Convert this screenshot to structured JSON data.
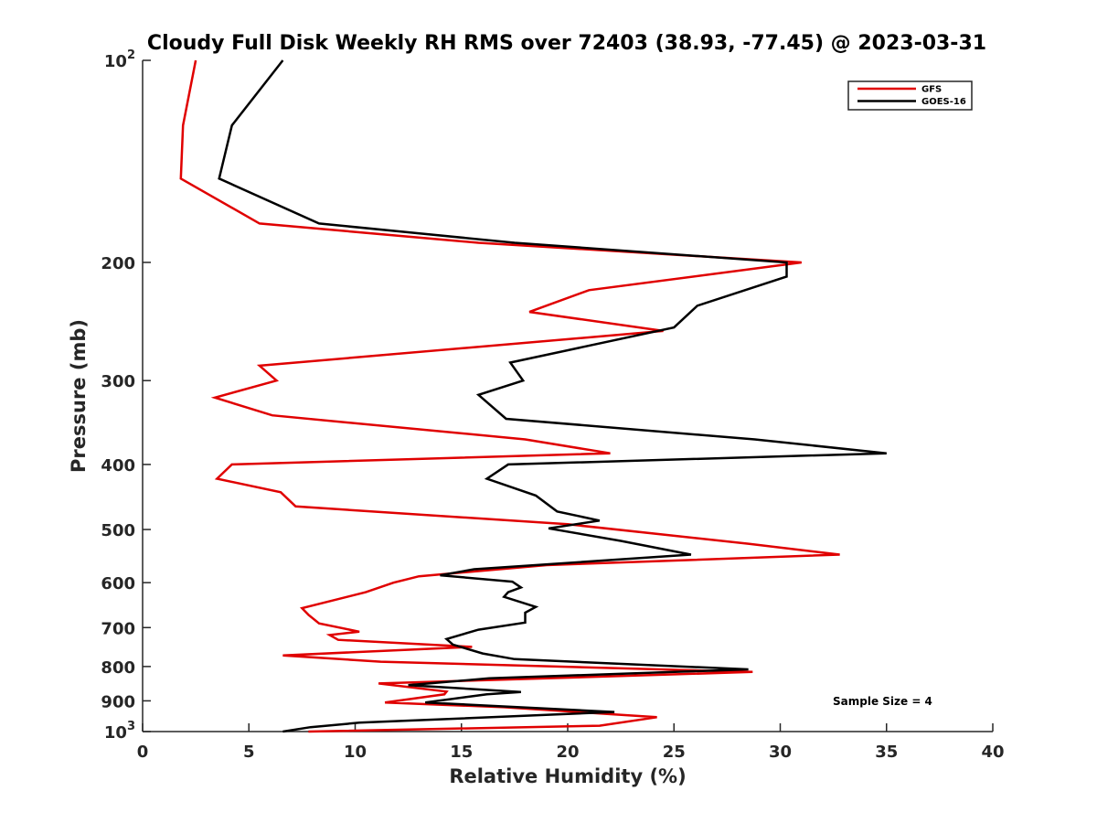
{
  "chart_data": {
    "type": "line",
    "title": "Cloudy Full Disk Weekly RH RMS over 72403 (38.93, -77.45) @ 2023-03-31",
    "xlabel": "Relative Humidity (%)",
    "ylabel": "Pressure (mb)",
    "xlim": [
      0,
      40
    ],
    "ylim": [
      100,
      1000
    ],
    "yscale": "log",
    "y_reversed": true,
    "grid": false,
    "legend_position": "top-right",
    "x_ticks": [
      "0",
      "5",
      "10",
      "15",
      "20",
      "25",
      "30",
      "35",
      "40"
    ],
    "x_tick_values": [
      0,
      5,
      10,
      15,
      20,
      25,
      30,
      35,
      40
    ],
    "y_tick_values": [
      100,
      200,
      300,
      400,
      500,
      600,
      700,
      800,
      900,
      1000
    ],
    "y_tick_labels": [
      {
        "base": "10",
        "exp": "2"
      },
      {
        "base": "200",
        "exp": ""
      },
      {
        "base": "300",
        "exp": ""
      },
      {
        "base": "400",
        "exp": ""
      },
      {
        "base": "500",
        "exp": ""
      },
      {
        "base": "600",
        "exp": ""
      },
      {
        "base": "700",
        "exp": ""
      },
      {
        "base": "800",
        "exp": ""
      },
      {
        "base": "900",
        "exp": ""
      },
      {
        "base": "10",
        "exp": "3"
      }
    ],
    "annotation": "Sample Size = 4",
    "series": [
      {
        "name": "GFS",
        "color": "#e00000",
        "points": [
          [
            2.5,
            100
          ],
          [
            1.9,
            125
          ],
          [
            1.8,
            150
          ],
          [
            5.5,
            175
          ],
          [
            15.8,
            187
          ],
          [
            31.0,
            200
          ],
          [
            21.0,
            220
          ],
          [
            18.2,
            237
          ],
          [
            24.5,
            253
          ],
          [
            5.5,
            285
          ],
          [
            6.3,
            300
          ],
          [
            3.4,
            318
          ],
          [
            6.1,
            338
          ],
          [
            18.0,
            367
          ],
          [
            22.0,
            385
          ],
          [
            4.2,
            400
          ],
          [
            3.5,
            420
          ],
          [
            6.5,
            440
          ],
          [
            7.2,
            462
          ],
          [
            20.0,
            491
          ],
          [
            28.5,
            525
          ],
          [
            32.8,
            545
          ],
          [
            19.0,
            565
          ],
          [
            13.0,
            587
          ],
          [
            11.8,
            600
          ],
          [
            10.5,
            620
          ],
          [
            7.5,
            655
          ],
          [
            7.8,
            670
          ],
          [
            8.3,
            690
          ],
          [
            10.2,
            710
          ],
          [
            8.8,
            718
          ],
          [
            9.2,
            730
          ],
          [
            15.5,
            748
          ],
          [
            6.6,
            770
          ],
          [
            11.2,
            787
          ],
          [
            28.7,
            815
          ],
          [
            11.1,
            848
          ],
          [
            14.3,
            872
          ],
          [
            14.2,
            880
          ],
          [
            11.4,
            905
          ],
          [
            17.0,
            920
          ],
          [
            24.2,
            952
          ],
          [
            21.5,
            980
          ],
          [
            7.8,
            1000
          ]
        ]
      },
      {
        "name": "GOES-16",
        "color": "#000000",
        "points": [
          [
            6.6,
            100
          ],
          [
            4.2,
            125
          ],
          [
            3.6,
            150
          ],
          [
            8.3,
            175
          ],
          [
            17.5,
            187
          ],
          [
            30.3,
            200
          ],
          [
            30.3,
            210
          ],
          [
            26.1,
            232
          ],
          [
            25.0,
            250
          ],
          [
            17.3,
            282
          ],
          [
            17.9,
            300
          ],
          [
            15.8,
            315
          ],
          [
            17.1,
            342
          ],
          [
            28.8,
            367
          ],
          [
            35.0,
            385
          ],
          [
            17.2,
            400
          ],
          [
            16.2,
            420
          ],
          [
            18.5,
            445
          ],
          [
            19.5,
            470
          ],
          [
            21.5,
            485
          ],
          [
            19.1,
            498
          ],
          [
            22.5,
            520
          ],
          [
            25.8,
            545
          ],
          [
            15.6,
            573
          ],
          [
            14.0,
            585
          ],
          [
            17.4,
            598
          ],
          [
            17.8,
            610
          ],
          [
            17.2,
            620
          ],
          [
            17.0,
            630
          ],
          [
            18.5,
            652
          ],
          [
            18.0,
            665
          ],
          [
            18.0,
            688
          ],
          [
            15.8,
            705
          ],
          [
            14.3,
            728
          ],
          [
            14.6,
            742
          ],
          [
            16.0,
            765
          ],
          [
            17.5,
            780
          ],
          [
            28.5,
            808
          ],
          [
            16.3,
            833
          ],
          [
            12.5,
            853
          ],
          [
            17.8,
            873
          ],
          [
            16.2,
            880
          ],
          [
            13.3,
            905
          ],
          [
            22.2,
            935
          ],
          [
            10.2,
            970
          ],
          [
            7.9,
            985
          ],
          [
            6.6,
            1000
          ]
        ]
      }
    ]
  }
}
